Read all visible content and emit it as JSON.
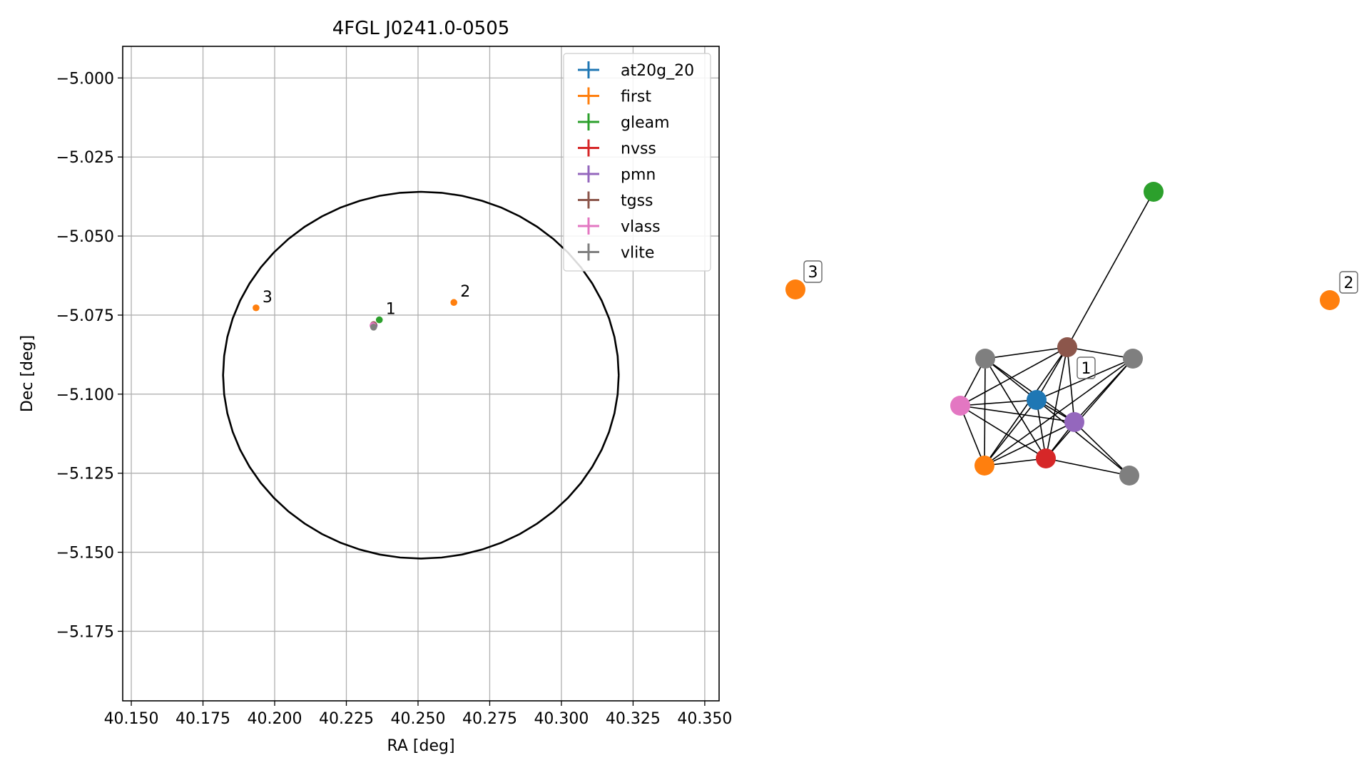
{
  "chart_data": [
    {
      "type": "scatter",
      "title": "4FGL J0241.0-0505",
      "xlabel": "RA [deg]",
      "ylabel": "Dec [deg]",
      "xlim": [
        40.147,
        40.355
      ],
      "ylim": [
        -5.197,
        -4.99
      ],
      "xticks": [
        40.15,
        40.175,
        40.2,
        40.225,
        40.25,
        40.275,
        40.3,
        40.325,
        40.35
      ],
      "xtick_labels": [
        "40.150",
        "40.175",
        "40.200",
        "40.225",
        "40.250",
        "40.275",
        "40.300",
        "40.325",
        "40.350"
      ],
      "yticks": [
        -5.0,
        -5.025,
        -5.05,
        -5.075,
        -5.1,
        -5.125,
        -5.15,
        -5.175
      ],
      "ytick_labels": [
        "−5.000",
        "−5.025",
        "−5.050",
        "−5.075",
        "−5.100",
        "−5.125",
        "−5.150",
        "−5.175"
      ],
      "grid": true,
      "legend_placement": "upper right",
      "ellipse": {
        "center": [
          40.251,
          -5.094
        ],
        "semi_axis_ra": 0.069,
        "semi_axis_dec": 0.058
      },
      "series": [
        {
          "name": "at20g_20",
          "color": "#1f77b4",
          "points": [
            [
              40.2345,
              -5.0783
            ]
          ]
        },
        {
          "name": "first",
          "color": "#ff7f0e",
          "points": [
            [
              40.2345,
              -5.0787
            ],
            [
              40.2625,
              -5.071
            ],
            [
              40.1935,
              -5.0727
            ]
          ]
        },
        {
          "name": "gleam",
          "color": "#2ca02c",
          "points": [
            [
              40.2365,
              -5.0765
            ]
          ]
        },
        {
          "name": "nvss",
          "color": "#d62728",
          "points": [
            [
              40.2345,
              -5.0785
            ]
          ]
        },
        {
          "name": "pmn",
          "color": "#9467bd",
          "points": [
            [
              40.2347,
              -5.0783
            ]
          ]
        },
        {
          "name": "tgss",
          "color": "#8c564b",
          "points": [
            [
              40.2345,
              -5.078
            ]
          ]
        },
        {
          "name": "vlass",
          "color": "#e377c2",
          "points": [
            [
              40.2343,
              -5.0783
            ]
          ]
        },
        {
          "name": "vlite",
          "color": "#7f7f7f",
          "points": [
            [
              40.2345,
              -5.0788
            ]
          ]
        }
      ],
      "annotations": [
        {
          "text": "1",
          "at": [
            40.2365,
            -5.0765
          ]
        },
        {
          "text": "2",
          "at": [
            40.2625,
            -5.071
          ]
        },
        {
          "text": "3",
          "at": [
            40.1935,
            -5.0727
          ]
        }
      ]
    },
    {
      "type": "network",
      "nodes": [
        {
          "id": "n_at20g",
          "color": "#1f77b4"
        },
        {
          "id": "n_first1",
          "color": "#ff7f0e"
        },
        {
          "id": "n_gleam",
          "color": "#2ca02c"
        },
        {
          "id": "n_nvss",
          "color": "#d62728"
        },
        {
          "id": "n_pmn",
          "color": "#9467bd"
        },
        {
          "id": "n_tgss",
          "color": "#8c564b"
        },
        {
          "id": "n_vlass",
          "color": "#e377c2"
        },
        {
          "id": "n_vlite_a",
          "color": "#7f7f7f"
        },
        {
          "id": "n_vlite_b",
          "color": "#7f7f7f"
        },
        {
          "id": "n_vlite_c",
          "color": "#7f7f7f"
        },
        {
          "id": "n_first3",
          "color": "#ff7f0e"
        },
        {
          "id": "n_first2",
          "color": "#ff7f0e"
        }
      ],
      "edges": [
        [
          "n_vlite_a",
          "n_tgss"
        ],
        [
          "n_vlite_a",
          "n_vlass"
        ],
        [
          "n_vlite_a",
          "n_first1"
        ],
        [
          "n_vlite_a",
          "n_nvss"
        ],
        [
          "n_vlite_a",
          "n_at20g"
        ],
        [
          "n_vlite_a",
          "n_pmn"
        ],
        [
          "n_tgss",
          "n_vlite_b"
        ],
        [
          "n_tgss",
          "n_vlass"
        ],
        [
          "n_tgss",
          "n_at20g"
        ],
        [
          "n_tgss",
          "n_nvss"
        ],
        [
          "n_tgss",
          "n_pmn"
        ],
        [
          "n_tgss",
          "n_first1"
        ],
        [
          "n_tgss",
          "n_gleam"
        ],
        [
          "n_vlite_b",
          "n_at20g"
        ],
        [
          "n_vlite_b",
          "n_nvss"
        ],
        [
          "n_vlite_b",
          "n_pmn"
        ],
        [
          "n_vlite_b",
          "n_first1"
        ],
        [
          "n_vlass",
          "n_at20g"
        ],
        [
          "n_vlass",
          "n_pmn"
        ],
        [
          "n_vlass",
          "n_nvss"
        ],
        [
          "n_vlass",
          "n_first1"
        ],
        [
          "n_at20g",
          "n_pmn"
        ],
        [
          "n_at20g",
          "n_nvss"
        ],
        [
          "n_at20g",
          "n_first1"
        ],
        [
          "n_at20g",
          "n_vlite_c"
        ],
        [
          "n_pmn",
          "n_nvss"
        ],
        [
          "n_pmn",
          "n_vlite_c"
        ],
        [
          "n_pmn",
          "n_first1"
        ],
        [
          "n_nvss",
          "n_first1"
        ],
        [
          "n_nvss",
          "n_vlite_c"
        ]
      ],
      "labels": [
        {
          "text": "1",
          "node": "n_tgss"
        },
        {
          "text": "2",
          "node": "n_first2"
        },
        {
          "text": "3",
          "node": "n_first3"
        }
      ]
    }
  ]
}
